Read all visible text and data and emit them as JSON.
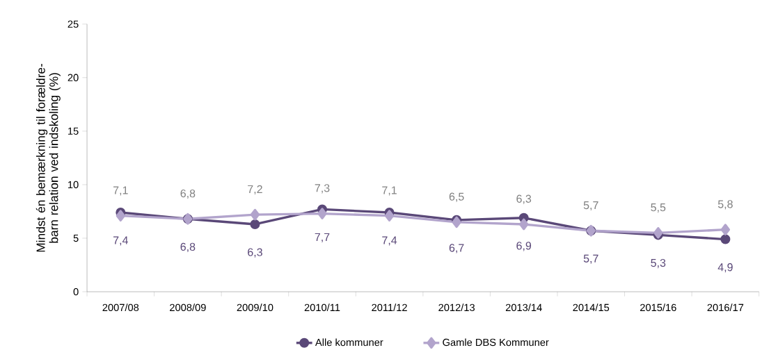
{
  "chart_data": {
    "type": "line",
    "ylabel": "Mindst én bemærkning til forældre-barn relation ved indskoling (%)",
    "categories": [
      "2007/08",
      "2008/09",
      "2009/10",
      "2010/11",
      "2011/12",
      "2012/13",
      "2013/14",
      "2014/15",
      "2015/16",
      "2016/17"
    ],
    "series": [
      {
        "name": "Alle kommuner",
        "color": "#5a4878",
        "marker": "circle",
        "values": [
          7.4,
          6.8,
          6.3,
          7.7,
          7.4,
          6.7,
          6.9,
          5.7,
          5.3,
          4.9
        ],
        "value_labels": [
          "7,4",
          "6,8",
          "6,3",
          "7,7",
          "7,4",
          "6,7",
          "6,9",
          "5,7",
          "5,3",
          "4,9"
        ]
      },
      {
        "name": "Gamle DBS Kommuner",
        "color": "#b2a4cc",
        "marker": "diamond",
        "values": [
          7.1,
          6.8,
          7.2,
          7.3,
          7.1,
          6.5,
          6.3,
          5.7,
          5.5,
          5.8
        ],
        "value_labels": [
          "7,1",
          "6,8",
          "7,2",
          "7,3",
          "7,1",
          "6,5",
          "6,3",
          "5,7",
          "5,5",
          "5,8"
        ]
      }
    ],
    "ylim": [
      0,
      25
    ],
    "yticks": [
      0,
      5,
      10,
      15,
      20,
      25
    ],
    "grid": false,
    "legend": "bottom",
    "line_style": "solid"
  }
}
